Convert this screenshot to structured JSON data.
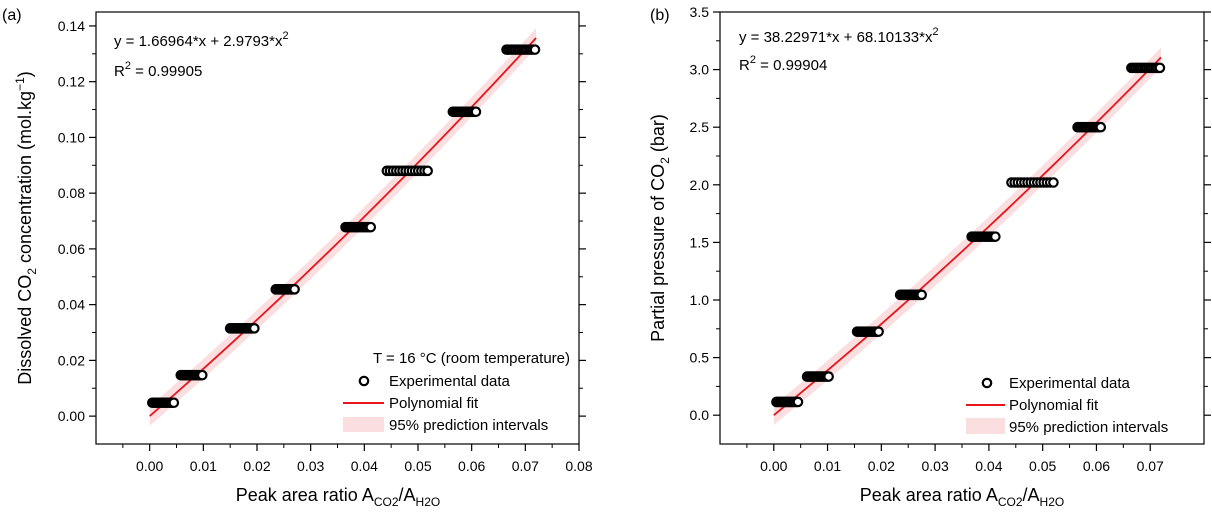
{
  "colors": {
    "fit_line": "#e8141b",
    "band": "#f7c2c4",
    "marker_stroke": "#000000",
    "marker_fill": "#ffffff"
  },
  "chart_data": [
    {
      "type": "scatter",
      "panel_label": "(a)",
      "xlabel_main": "Peak area ratio A",
      "xlabel_sub1": "CO2",
      "xlabel_mid": "/A",
      "xlabel_sub2": "H2O",
      "ylabel_part1": "Dissolved CO",
      "ylabel_sub": "2",
      "ylabel_part2": " concentration (mol.kg",
      "ylabel_sup": "−1",
      "ylabel_part3": ")",
      "xlim": [
        -0.01,
        0.08
      ],
      "ylim": [
        -0.01,
        0.145
      ],
      "xticks": [
        0.0,
        0.01,
        0.02,
        0.03,
        0.04,
        0.05,
        0.06,
        0.07,
        0.08
      ],
      "xtick_labels": [
        "0.00",
        "0.01",
        "0.02",
        "0.03",
        "0.04",
        "0.05",
        "0.06",
        "0.07",
        "0.08"
      ],
      "yticks": [
        0.0,
        0.02,
        0.04,
        0.06,
        0.08,
        0.1,
        0.12,
        0.14
      ],
      "ytick_labels": [
        "0.00",
        "0.02",
        "0.04",
        "0.06",
        "0.08",
        "0.10",
        "0.12",
        "0.14"
      ],
      "equation_main": "y = 1.66964*x + 2.9793*x",
      "equation_sup": "2",
      "r2_main": "R",
      "r2_sup": "2",
      "r2_value": " = 0.99905",
      "fit": {
        "a": 1.66964,
        "b": 2.9793,
        "x_range": [
          0.0,
          0.072
        ]
      },
      "band_halfwidth": 0.0035,
      "groups": [
        {
          "y": 0.0048,
          "x_min": 0.0005,
          "x_max": 0.0045
        },
        {
          "y": 0.0147,
          "x_min": 0.0058,
          "x_max": 0.0098
        },
        {
          "y": 0.0315,
          "x_min": 0.015,
          "x_max": 0.0195
        },
        {
          "y": 0.0455,
          "x_min": 0.0235,
          "x_max": 0.027
        },
        {
          "y": 0.0678,
          "x_min": 0.0365,
          "x_max": 0.0412
        },
        {
          "y": 0.088,
          "x_min": 0.0442,
          "x_max": 0.0518
        },
        {
          "y": 0.1092,
          "x_min": 0.0565,
          "x_max": 0.0608
        },
        {
          "y": 0.1315,
          "x_min": 0.0665,
          "x_max": 0.0718
        }
      ],
      "legend": {
        "header": "T = 16 °C (room temperature)",
        "experimental": "Experimental data",
        "fit": "Polynomial fit",
        "band": "95% prediction intervals"
      }
    },
    {
      "type": "scatter",
      "panel_label": "(b)",
      "xlabel_main": "Peak area ratio A",
      "xlabel_sub1": "CO2",
      "xlabel_mid": "/A",
      "xlabel_sub2": "H2O",
      "ylabel_part1": "Partial pressure of CO",
      "ylabel_sub": "2",
      "ylabel_part2": " (bar)",
      "xlim": [
        -0.01,
        0.08
      ],
      "ylim": [
        -0.25,
        3.5
      ],
      "xticks": [
        0.0,
        0.01,
        0.02,
        0.03,
        0.04,
        0.05,
        0.06,
        0.07
      ],
      "xtick_labels": [
        "0.00",
        "0.01",
        "0.02",
        "0.03",
        "0.04",
        "0.05",
        "0.06",
        "0.07"
      ],
      "yticks": [
        0.0,
        0.5,
        1.0,
        1.5,
        2.0,
        2.5,
        3.0,
        3.5
      ],
      "ytick_labels": [
        "0.0",
        "0.5",
        "1.0",
        "1.5",
        "2.0",
        "2.5",
        "3.0",
        "3.5"
      ],
      "equation_main": "y =  38.22971*x + 68.10133*x",
      "equation_sup": "2",
      "r2_main": "R",
      "r2_sup": "2",
      "r2_value": " = 0.99904",
      "fit": {
        "a": 38.22971,
        "b": 68.10133,
        "x_range": [
          0.0,
          0.072
        ]
      },
      "band_halfwidth": 0.085,
      "groups": [
        {
          "y": 0.115,
          "x_min": 0.0005,
          "x_max": 0.0045
        },
        {
          "y": 0.335,
          "x_min": 0.0062,
          "x_max": 0.0102
        },
        {
          "y": 0.725,
          "x_min": 0.0155,
          "x_max": 0.0195
        },
        {
          "y": 1.045,
          "x_min": 0.0235,
          "x_max": 0.0275
        },
        {
          "y": 1.55,
          "x_min": 0.0368,
          "x_max": 0.0412
        },
        {
          "y": 2.02,
          "x_min": 0.0442,
          "x_max": 0.052
        },
        {
          "y": 2.5,
          "x_min": 0.0565,
          "x_max": 0.0608
        },
        {
          "y": 3.015,
          "x_min": 0.0665,
          "x_max": 0.0718
        }
      ],
      "legend": {
        "experimental": "Experimental data",
        "fit": "Polynomial fit",
        "band": "95% prediction intervals"
      }
    }
  ]
}
